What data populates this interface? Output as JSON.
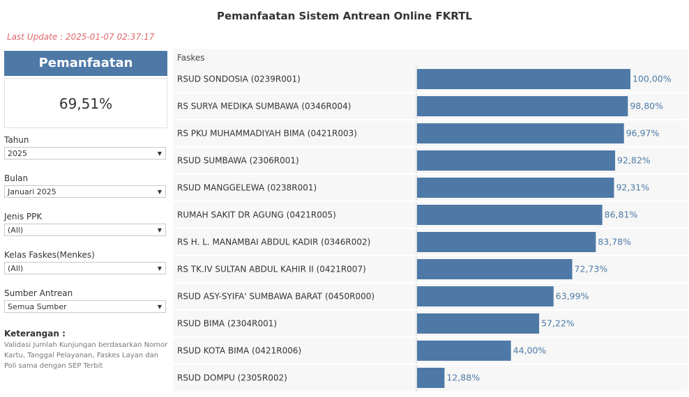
{
  "title": "Pemanfaatan Sistem Antrean Online FKRTL",
  "last_update": "Last Update : 2025-01-07 02:37:17",
  "kpi": {
    "label": "Pemanfaatan",
    "value": "69,51%"
  },
  "filters": [
    {
      "label": "Tahun",
      "value": "2025"
    },
    {
      "label": "Bulan",
      "value": "Januari 2025"
    },
    {
      "label": "Jenis PPK",
      "value": "(All)"
    },
    {
      "label": "Kelas Faskes(Menkes)",
      "value": "(All)"
    },
    {
      "label": "Sumber Antrean",
      "value": "Semua Sumber"
    }
  ],
  "notes": {
    "title": "Keterangan :",
    "text": "Validasi Jumlah Kunjungan berdasarkan Nomor Kartu, Tanggal Pelayanan, Faskes Layan dan Poli sama dengan SEP Terbit"
  },
  "colors": {
    "bar": "#4e79a7",
    "label": "#4e79a7",
    "accent_header": "#4e79a7",
    "update": "#e0666b"
  },
  "chart_data": {
    "type": "bar",
    "orientation": "horizontal",
    "column_header": "Faskes",
    "categories": [
      "RSUD SONDOSIA (0239R001)",
      "RS SURYA MEDIKA SUMBAWA (0346R004)",
      "RS PKU MUHAMMADIYAH BIMA (0421R003)",
      "RSUD SUMBAWA (2306R001)",
      "RSUD MANGGELEWA (0238R001)",
      "RUMAH SAKIT DR AGUNG (0421R005)",
      "RS H. L. MANAMBAI ABDUL KADIR (0346R002)",
      "RS TK.IV SULTAN ABDUL KAHIR II (0421R007)",
      "RSUD ASY-SYIFA' SUMBAWA BARAT (0450R000)",
      "RSUD BIMA (2304R001)",
      "RSUD KOTA BIMA (0421R006)",
      "RSUD DOMPU (2305R002)"
    ],
    "values": [
      100.0,
      98.8,
      96.97,
      92.82,
      92.31,
      86.81,
      83.78,
      72.73,
      63.99,
      57.22,
      44.0,
      12.88
    ],
    "value_labels": [
      "100,00%",
      "98,80%",
      "96,97%",
      "92,82%",
      "92,31%",
      "86,81%",
      "83,78%",
      "72,73%",
      "63,99%",
      "57,22%",
      "44,00%",
      "12,88%"
    ],
    "xlim": [
      0,
      100
    ]
  }
}
